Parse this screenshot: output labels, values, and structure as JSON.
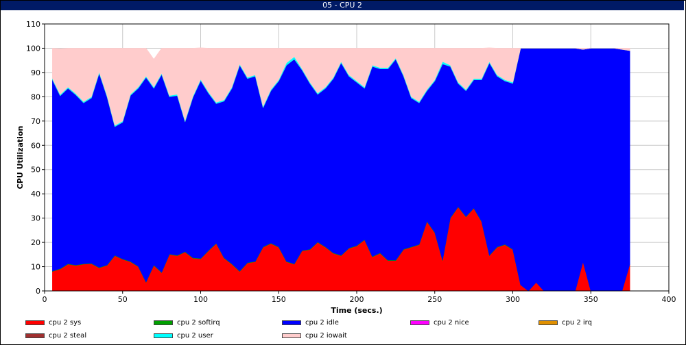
{
  "window": {
    "title": "05 - CPU 2"
  },
  "chart_data": {
    "type": "area",
    "stacked": true,
    "title": "05 - CPU 2",
    "xlabel": "Time (secs.)",
    "ylabel": "CPU Utilization",
    "xlim": [
      0,
      400
    ],
    "ylim": [
      0,
      110
    ],
    "xticks": [
      0,
      50,
      100,
      150,
      200,
      250,
      300,
      350,
      400
    ],
    "yticks": [
      0,
      10,
      20,
      30,
      40,
      50,
      60,
      70,
      80,
      90,
      100,
      110
    ],
    "grid": true,
    "legend_position": "bottom",
    "x": [
      5,
      10,
      15,
      20,
      25,
      30,
      35,
      40,
      45,
      50,
      55,
      60,
      65,
      70,
      75,
      80,
      85,
      90,
      95,
      100,
      105,
      110,
      115,
      120,
      125,
      130,
      135,
      140,
      145,
      150,
      155,
      160,
      165,
      170,
      175,
      180,
      185,
      190,
      195,
      200,
      205,
      210,
      215,
      220,
      225,
      230,
      235,
      240,
      245,
      250,
      255,
      260,
      265,
      270,
      275,
      280,
      285,
      290,
      295,
      300,
      305,
      310,
      315,
      320,
      325,
      330,
      335,
      340,
      345,
      350,
      355,
      360,
      365,
      370,
      375
    ],
    "series": [
      {
        "name": "cpu 2 sys",
        "color": "#ff0000",
        "values": [
          8,
          9,
          11,
          10.5,
          11,
          11.2,
          9.5,
          10.5,
          14.5,
          13,
          12,
          10,
          3.5,
          10.5,
          7.5,
          15,
          14.5,
          16,
          13.5,
          13.2,
          16.5,
          19.5,
          13.5,
          11,
          8,
          11.5,
          12,
          18,
          19.5,
          18,
          12,
          11,
          16.5,
          17,
          20,
          18,
          15.5,
          14.5,
          17.5,
          18.5,
          21,
          14,
          15.5,
          12.5,
          12.5,
          17,
          18,
          19,
          28.5,
          24,
          12.5,
          30,
          34.5,
          30.5,
          34,
          28.5,
          14.5,
          18,
          19,
          17,
          2.5,
          0,
          3.5,
          0,
          0,
          0,
          0,
          0,
          12,
          0,
          0,
          0,
          0,
          0,
          11
        ]
      },
      {
        "name": "cpu 2 softirq",
        "color": "#00a000",
        "values": [
          0.2,
          0.2,
          0.2,
          0.2,
          0.2,
          0.2,
          0.2,
          0.2,
          0.2,
          0.2,
          0.2,
          0.2,
          0.2,
          0.2,
          0.2,
          0.2,
          0.2,
          0.2,
          0.2,
          0.2,
          0.2,
          0.2,
          0.2,
          0.2,
          0.2,
          0.2,
          0.2,
          0.2,
          0.2,
          0.2,
          0.2,
          0.2,
          0.2,
          0.2,
          0.2,
          0.2,
          0.2,
          0.2,
          0.2,
          0.2,
          0.2,
          0.2,
          0.2,
          0.2,
          0.2,
          0.2,
          0.2,
          0.2,
          0.2,
          0.2,
          0.2,
          0.2,
          0.2,
          0.2,
          0.2,
          0.2,
          0.2,
          0.2,
          0.2,
          0.2,
          0,
          0,
          0,
          0,
          0,
          0,
          0,
          0,
          0,
          0,
          0,
          0,
          0,
          0,
          0
        ]
      },
      {
        "name": "cpu 2 idle",
        "color": "#0000ff",
        "values": [
          78.8,
          71.2,
          72.3,
          70.1,
          66.3,
          68.1,
          80,
          69.3,
          53,
          56.3,
          68.3,
          73.3,
          84.3,
          72.8,
          81.5,
          64.8,
          65.8,
          53.5,
          66,
          73.3,
          64.8,
          57.5,
          64.5,
          72.3,
          84.8,
          75.8,
          76.3,
          57.3,
          62.8,
          68.3,
          80.8,
          84.3,
          74.3,
          68.3,
          60.8,
          65.3,
          71.8,
          79.3,
          70.8,
          67.3,
          62.3,
          78.3,
          75.8,
          78.8,
          82.8,
          71.3,
          61.3,
          58.3,
          53.8,
          62.3,
          80.8,
          62.3,
          50.8,
          51.8,
          52.8,
          58.3,
          79.3,
          70.3,
          67.3,
          68.3,
          97.5,
          100,
          96.5,
          100,
          100,
          100,
          100,
          100,
          87.5,
          100,
          100,
          100,
          100,
          99.5,
          88
        ]
      },
      {
        "name": "cpu 2 nice",
        "color": "#ff00ff",
        "values": [
          0,
          0,
          0,
          0,
          0,
          0,
          0,
          0,
          0,
          0,
          0,
          0,
          0,
          0,
          0,
          0,
          0,
          0,
          0,
          0,
          0,
          0,
          0,
          0,
          0,
          0,
          0,
          0,
          0,
          0,
          0,
          0,
          0,
          0,
          0,
          0,
          0,
          0,
          0,
          0,
          0,
          0,
          0,
          0,
          0,
          0,
          0,
          0,
          0,
          0,
          0,
          0,
          0,
          0,
          0,
          0,
          0,
          0,
          0,
          0,
          0,
          0,
          0,
          0,
          0,
          0,
          0,
          0,
          0,
          0,
          0,
          0,
          0,
          0,
          0
        ]
      },
      {
        "name": "cpu 2 irq",
        "color": "#e09000",
        "values": [
          0,
          0,
          0,
          0,
          0,
          0,
          0,
          0,
          0,
          0,
          0,
          0,
          0,
          0,
          0,
          0,
          0,
          0,
          0,
          0,
          0,
          0,
          0,
          0,
          0,
          0,
          0,
          0,
          0,
          0,
          0,
          0,
          0,
          0,
          0,
          0,
          0,
          0,
          0,
          0,
          0,
          0,
          0,
          0,
          0,
          0,
          0,
          0,
          0,
          0,
          0,
          0,
          0,
          0,
          0,
          0,
          0,
          0,
          0,
          0,
          0,
          0,
          0,
          0,
          0,
          0,
          0,
          0,
          0,
          0,
          0,
          0,
          0,
          0,
          0
        ]
      },
      {
        "name": "cpu 2 steal",
        "color": "#a03030",
        "values": [
          0,
          0,
          0,
          0,
          0,
          0,
          0,
          0,
          0,
          0,
          0,
          0,
          0,
          0,
          0,
          0,
          0,
          0,
          0,
          0,
          0,
          0,
          0,
          0,
          0,
          0,
          0,
          0,
          0,
          0,
          0,
          0,
          0,
          0,
          0,
          0,
          0,
          0,
          0,
          0,
          0,
          0,
          0,
          0,
          0,
          0,
          0,
          0,
          0,
          0,
          0,
          0,
          0,
          0,
          0,
          0,
          0,
          0,
          0,
          0,
          0,
          0,
          0,
          0,
          0,
          0,
          0,
          0,
          0,
          0,
          0,
          0,
          0,
          0,
          0
        ]
      },
      {
        "name": "cpu 2 user",
        "color": "#00ffff",
        "values": [
          0.5,
          0.5,
          0.5,
          0.5,
          0.5,
          0.5,
          0.5,
          0.5,
          0.5,
          0.5,
          0.5,
          0.5,
          0.5,
          0.5,
          0.5,
          0.5,
          0.5,
          0.5,
          0.5,
          0.5,
          0.5,
          0.5,
          0.5,
          0.5,
          0.5,
          0.5,
          0.5,
          0.5,
          0.5,
          0.5,
          1,
          1,
          0.5,
          0.5,
          0.5,
          0.5,
          0.5,
          0.5,
          0.5,
          0.5,
          0.5,
          0.5,
          0.5,
          0.5,
          0.5,
          0.5,
          0.5,
          0.5,
          0.5,
          0.5,
          1,
          0.5,
          0.5,
          0.5,
          0.5,
          0.5,
          0.5,
          0.5,
          0.5,
          0.5,
          0,
          0,
          0,
          0,
          0,
          0,
          0,
          0,
          0,
          0,
          0,
          0,
          0,
          0,
          0
        ]
      },
      {
        "name": "cpu 2 iowait",
        "color": "#ffcccc",
        "values": [
          12.5,
          18.9,
          16,
          18.7,
          22,
          20,
          9.8,
          19.5,
          31.8,
          30,
          19,
          16,
          11.5,
          11.5,
          10.3,
          19.5,
          19,
          29.8,
          19.8,
          13,
          18,
          22.3,
          21.3,
          16,
          6.5,
          12,
          11,
          24,
          17,
          13,
          6,
          3.5,
          8.5,
          14,
          18.5,
          16,
          12,
          5.5,
          11,
          13.5,
          16,
          7,
          8,
          8,
          4,
          11,
          20,
          22,
          17,
          13,
          5.5,
          7,
          14,
          17,
          12.5,
          12.5,
          5.7,
          11,
          13,
          14,
          0,
          0,
          0,
          0,
          0,
          0,
          0,
          0,
          0.5,
          0,
          0,
          0,
          0,
          0.5,
          1
        ]
      }
    ]
  }
}
